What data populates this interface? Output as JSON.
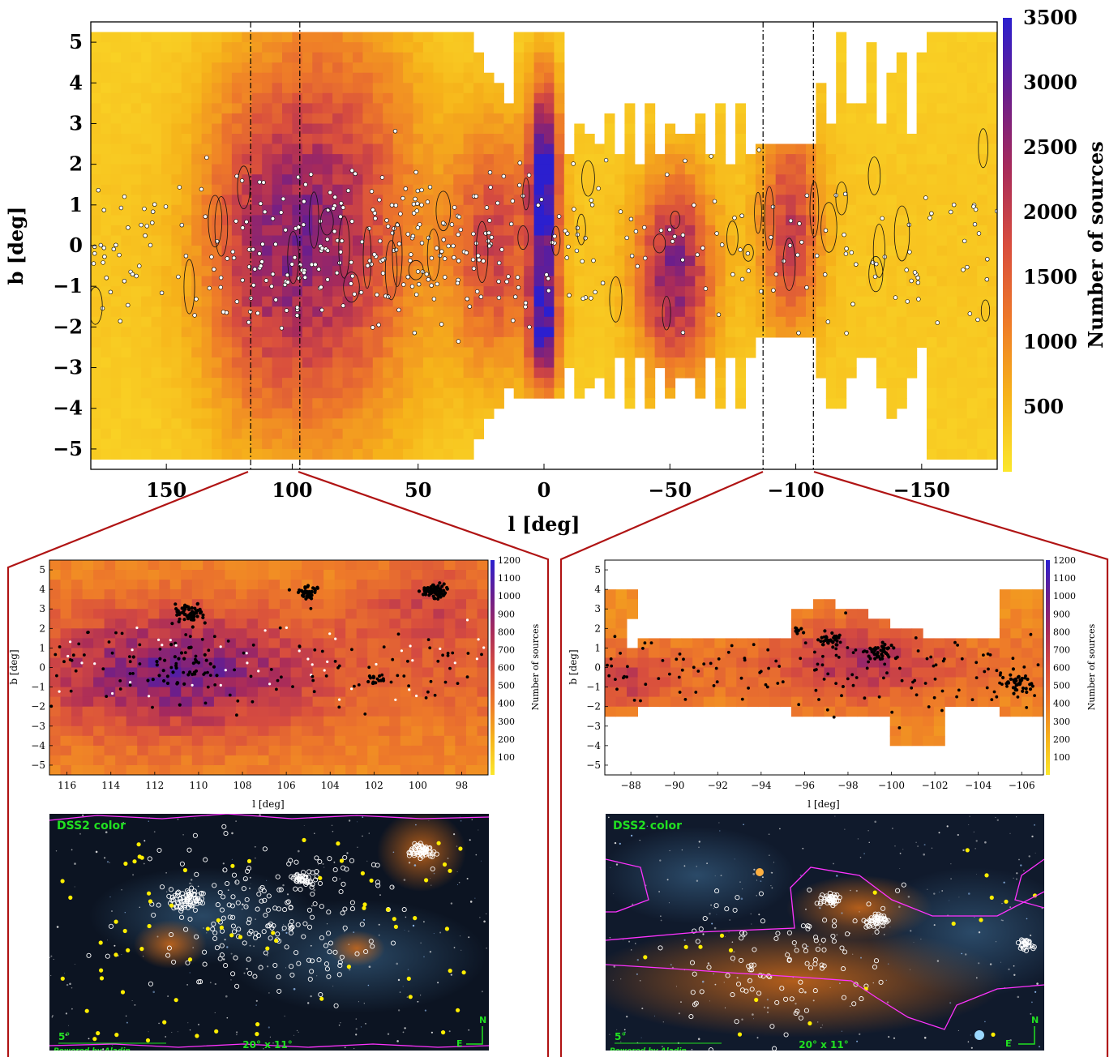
{
  "chart_data": [
    {
      "type": "heatmap",
      "xlabel": "l [deg]",
      "ylabel": "b [deg]",
      "colorbar_label": "Number of sources",
      "xlim": [
        180,
        -180
      ],
      "ylim": [
        -5.5,
        5.5
      ],
      "xticks": [
        150,
        100,
        50,
        0,
        -50,
        -100,
        -150
      ],
      "xtick_labels": [
        "150",
        "100",
        "50",
        "0",
        "−50",
        "−100",
        "−150"
      ],
      "yticks": [
        5,
        4,
        3,
        2,
        1,
        0,
        -1,
        -2,
        -3,
        -4,
        -5
      ],
      "ytick_labels": [
        "5",
        "4",
        "3",
        "2",
        "1",
        "0",
        "−1",
        "−2",
        "−3",
        "−4",
        "−5"
      ],
      "colorbar_range": [
        0,
        3500
      ],
      "colorbar_ticks": [
        500,
        1000,
        1500,
        2000,
        2500,
        3000,
        3500
      ],
      "colorbar_tick_labels": [
        "500",
        "1000",
        "1500",
        "2000",
        "2500",
        "3000",
        "3500"
      ],
      "zoom_windows": [
        [
          116.5,
          97
        ],
        [
          -87,
          -107
        ]
      ],
      "colormap": [
        "#fbe72c",
        "#f6b21a",
        "#ee7a29",
        "#d84d3e",
        "#a72a5b",
        "#6b1e8c",
        "#2b1fcf"
      ],
      "density_blobs": [
        {
          "l": 0,
          "b": 1.6,
          "sl": 4,
          "sb": 1.6,
          "v": 3400
        },
        {
          "l": 0,
          "b": -2.0,
          "sl": 4,
          "sb": 1.0,
          "v": 2900
        },
        {
          "l": 110,
          "b": 0,
          "sl": 18,
          "sb": 3.0,
          "v": 1700
        },
        {
          "l": 78,
          "b": 0.5,
          "sl": 20,
          "sb": 3.5,
          "v": 1500
        },
        {
          "l": -52,
          "b": -0.7,
          "sl": 10,
          "sb": 1.6,
          "v": 2300
        },
        {
          "l": -98,
          "b": 0.5,
          "sl": 8,
          "sb": 1.8,
          "v": 1600
        },
        {
          "l": 20,
          "b": 0,
          "sl": 12,
          "sb": 2.0,
          "v": 1500
        }
      ],
      "base_level": 250
    },
    {
      "type": "heatmap",
      "xlabel": "l [deg]",
      "ylabel": "b [deg]",
      "colorbar_label": "Number of sources",
      "xlim": [
        116.8,
        96.8
      ],
      "ylim": [
        -5.5,
        5.5
      ],
      "xticks": [
        116,
        114,
        112,
        110,
        108,
        106,
        104,
        102,
        100,
        98
      ],
      "xtick_labels": [
        "116",
        "114",
        "112",
        "110",
        "108",
        "106",
        "104",
        "102",
        "100",
        "98"
      ],
      "yticks": [
        5,
        4,
        3,
        2,
        1,
        0,
        -1,
        -2,
        -3,
        -4,
        -5
      ],
      "ytick_labels": [
        "5",
        "4",
        "3",
        "2",
        "1",
        "0",
        "−1",
        "−2",
        "−3",
        "−4",
        "−5"
      ],
      "colorbar_range": [
        0,
        1200
      ],
      "colorbar_ticks": [
        100,
        200,
        300,
        400,
        500,
        600,
        700,
        800,
        900,
        1000,
        1100,
        1200
      ],
      "colorbar_tick_labels": [
        "100",
        "200",
        "300",
        "400",
        "500",
        "600",
        "700",
        "800",
        "900",
        "1000",
        "1100",
        "1200"
      ],
      "point_clusters": [
        {
          "l": 110.5,
          "b": 2.8,
          "n": 60,
          "s": 0.5
        },
        {
          "l": 105,
          "b": 3.8,
          "n": 40,
          "s": 0.4
        },
        {
          "l": 99.2,
          "b": 3.9,
          "n": 70,
          "s": 0.4
        },
        {
          "l": 111,
          "b": 0,
          "n": 40,
          "s": 1.2
        },
        {
          "l": 102,
          "b": -0.6,
          "n": 15,
          "s": 0.3
        }
      ]
    },
    {
      "type": "heatmap",
      "xlabel": "l [deg]",
      "ylabel": "b [deg]",
      "colorbar_label": "Number of sources",
      "xlim": [
        -86.8,
        -107
      ],
      "ylim": [
        -5.5,
        5.5
      ],
      "xticks": [
        -88,
        -90,
        -92,
        -94,
        -96,
        -98,
        -100,
        -102,
        -104,
        -106
      ],
      "xtick_labels": [
        "−88",
        "−90",
        "−92",
        "−94",
        "−96",
        "−98",
        "−100",
        "−102",
        "−104",
        "−106"
      ],
      "yticks": [
        5,
        4,
        3,
        2,
        1,
        0,
        -1,
        -2,
        -3,
        -4,
        -5
      ],
      "ytick_labels": [
        "5",
        "4",
        "3",
        "2",
        "1",
        "0",
        "−1",
        "−2",
        "−3",
        "−4",
        "−5"
      ],
      "colorbar_range": [
        0,
        1200
      ],
      "colorbar_ticks": [
        100,
        200,
        300,
        400,
        500,
        600,
        700,
        800,
        900,
        1000,
        1100,
        1200
      ],
      "colorbar_tick_labels": [
        "100",
        "200",
        "300",
        "400",
        "500",
        "600",
        "700",
        "800",
        "900",
        "1000",
        "1100",
        "1200"
      ],
      "point_clusters": [
        {
          "l": -97.2,
          "b": 1.5,
          "n": 30,
          "s": 0.4
        },
        {
          "l": -99.5,
          "b": 0.8,
          "n": 45,
          "s": 0.4
        },
        {
          "l": -105.8,
          "b": -0.8,
          "n": 40,
          "s": 0.5
        },
        {
          "l": -95.6,
          "b": 1.9,
          "n": 12,
          "s": 0.3
        }
      ]
    }
  ],
  "images": [
    {
      "survey_label": "DSS2 color",
      "fov_label": "20° x 11°",
      "scale_label": "5°",
      "credit": "Powered by Aladin",
      "north_label": "N",
      "east_label": "E"
    },
    {
      "survey_label": "DSS2 color",
      "fov_label": "20° x 11°",
      "scale_label": "5°",
      "credit": "Powered by Aladin",
      "north_label": "N",
      "east_label": "E"
    }
  ],
  "colors": {
    "zoom_frame": "#b01414",
    "survey_label": "#21e021",
    "outline": "#ff33ff",
    "yellow_points": "#ffee00"
  }
}
